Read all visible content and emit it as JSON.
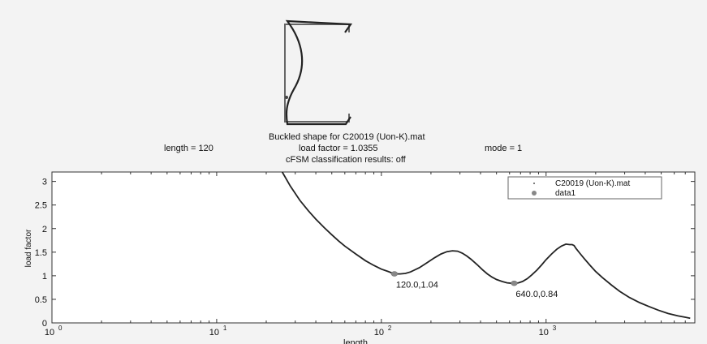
{
  "header": {
    "line1": "Buckled shape for  C20019 (Uon-K).mat",
    "line2_left": "length = 120",
    "line2_center": "load factor =  1.0355",
    "line2_right": "mode = 1",
    "line3": "cFSM classification results: off"
  },
  "chart_data": {
    "type": "line",
    "xlabel": "length",
    "ylabel": "load factor",
    "xscale": "log",
    "xlim": [
      1,
      8000
    ],
    "ylim": [
      0,
      3.2
    ],
    "y_ticks": [
      0,
      0.5,
      1,
      1.5,
      2,
      2.5,
      3
    ],
    "y_tick_labels": [
      "0",
      "0.5",
      "1",
      "1.5",
      "2",
      "2.5",
      "3"
    ],
    "x_ticks": [
      1,
      10,
      100,
      1000
    ],
    "x_tick_labels": [
      {
        "base": "10",
        "exp": "0"
      },
      {
        "base": "10",
        "exp": "1"
      },
      {
        "base": "10",
        "exp": "2"
      },
      {
        "base": "10",
        "exp": "3"
      }
    ],
    "grid": false,
    "legend_position": "top-right",
    "series": [
      {
        "name": "C20019 (Uon-K).mat",
        "color": "#222222",
        "x": [
          25,
          28,
          32,
          36,
          40,
          45,
          50,
          55,
          60,
          70,
          80,
          90,
          100,
          110,
          120,
          130,
          140,
          150,
          170,
          190,
          210,
          230,
          250,
          270,
          290,
          310,
          330,
          350,
          380,
          410,
          440,
          470,
          500,
          540,
          580,
          620,
          640,
          680,
          720,
          770,
          820,
          880,
          940,
          1000,
          1080,
          1160,
          1240,
          1320,
          1390,
          1440,
          1480,
          1520,
          1600,
          1700,
          1850,
          2000,
          2200,
          2500,
          2800,
          3200,
          3700,
          4200,
          4800,
          5500,
          6300,
          7000,
          7500
        ],
        "y": [
          3.2,
          2.9,
          2.6,
          2.38,
          2.2,
          2.02,
          1.87,
          1.74,
          1.63,
          1.46,
          1.32,
          1.22,
          1.14,
          1.09,
          1.04,
          1.04,
          1.05,
          1.08,
          1.17,
          1.28,
          1.38,
          1.46,
          1.51,
          1.53,
          1.52,
          1.48,
          1.42,
          1.35,
          1.24,
          1.13,
          1.04,
          0.97,
          0.92,
          0.88,
          0.85,
          0.84,
          0.84,
          0.85,
          0.88,
          0.94,
          1.02,
          1.12,
          1.23,
          1.34,
          1.46,
          1.56,
          1.63,
          1.67,
          1.66,
          1.66,
          1.64,
          1.58,
          1.48,
          1.37,
          1.22,
          1.09,
          0.96,
          0.8,
          0.67,
          0.54,
          0.43,
          0.35,
          0.27,
          0.2,
          0.15,
          0.12,
          0.1
        ]
      },
      {
        "name": "data1",
        "color": "#888888",
        "marker": "circle",
        "x": [
          120,
          640
        ],
        "y": [
          1.04,
          0.84
        ]
      }
    ],
    "annotations": [
      {
        "text": "120.0,1.04",
        "x": 120,
        "y": 1.04
      },
      {
        "text": "640.0,0.84",
        "x": 640,
        "y": 0.84
      }
    ]
  }
}
